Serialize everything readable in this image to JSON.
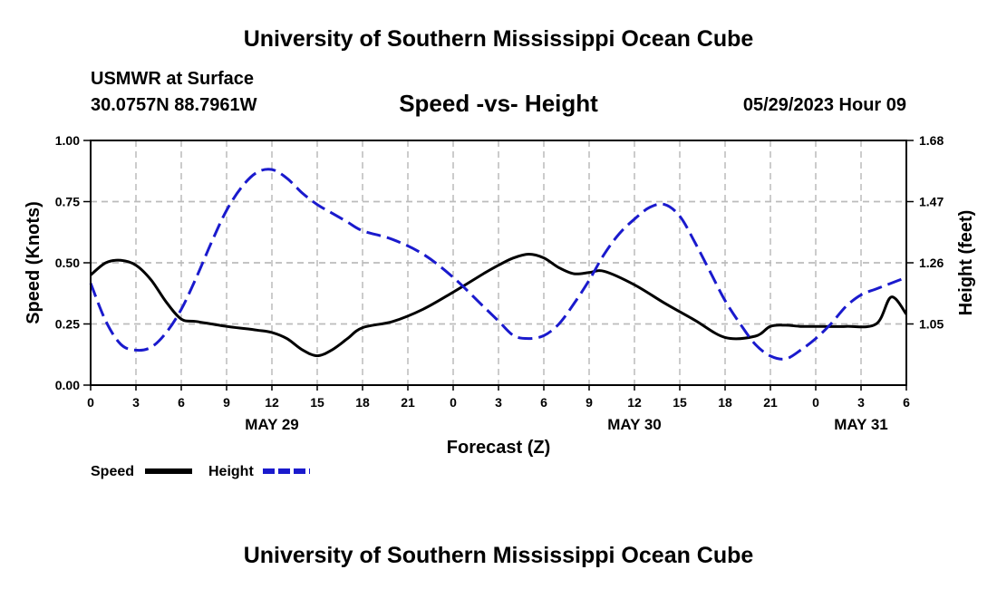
{
  "header": {
    "title": "University of Southern Mississippi Ocean Cube",
    "station": "USMWR at Surface",
    "coordinates": "30.0757N  88.7961W",
    "subtitle": "Speed -vs- Height",
    "timestamp": "05/29/2023 Hour 09"
  },
  "footer": {
    "title": "University of Southern Mississippi Ocean Cube"
  },
  "chart_data": {
    "type": "line",
    "title": "Speed -vs- Height",
    "xlabel": "Forecast (Z)",
    "ylabel_left": "Speed (Knots)",
    "ylabel_right": "Height (feet)",
    "x_range_hours": [
      0,
      54
    ],
    "x_tick_hours": [
      0,
      3,
      6,
      9,
      12,
      15,
      18,
      21,
      24,
      27,
      30,
      33,
      36,
      39,
      42,
      45,
      48,
      51,
      54
    ],
    "x_tick_labels": [
      "0",
      "3",
      "6",
      "9",
      "12",
      "15",
      "18",
      "21",
      "0",
      "3",
      "6",
      "9",
      "12",
      "15",
      "18",
      "21",
      "0",
      "3",
      "6"
    ],
    "day_labels": [
      {
        "label": "MAY 29",
        "hour": 12
      },
      {
        "label": "MAY 30",
        "hour": 36
      },
      {
        "label": "MAY 31",
        "hour": 51
      }
    ],
    "y_left": {
      "range": [
        0,
        1
      ],
      "ticks": [
        0,
        0.25,
        0.5,
        0.75,
        1
      ],
      "tick_labels": [
        "0.00",
        "0.25",
        "0.50",
        "0.75",
        "1.00"
      ]
    },
    "y_right": {
      "range": [
        0.84,
        1.68
      ],
      "ticks": [
        1.05,
        1.26,
        1.47,
        1.68
      ],
      "tick_labels": [
        "1.05",
        "1.26",
        "1.47",
        "1.68"
      ]
    },
    "grid": true,
    "legend": {
      "position": "bottom-left",
      "entries": [
        "Speed",
        "Height"
      ]
    },
    "series": [
      {
        "name": "Speed",
        "axis": "left",
        "color": "#000000",
        "style": "solid",
        "x": [
          0,
          1,
          2,
          3,
          4,
          5,
          6,
          7,
          9,
          11,
          12,
          13,
          14,
          15,
          16,
          17,
          18,
          20,
          22,
          24,
          26,
          27,
          28,
          29,
          30,
          31,
          32,
          33,
          34,
          36,
          38,
          40,
          42,
          44,
          45,
          46,
          47,
          48,
          50,
          52,
          53,
          54
        ],
        "values": [
          0.45,
          0.5,
          0.51,
          0.49,
          0.43,
          0.34,
          0.27,
          0.26,
          0.24,
          0.225,
          0.215,
          0.19,
          0.145,
          0.12,
          0.145,
          0.19,
          0.235,
          0.26,
          0.31,
          0.38,
          0.455,
          0.49,
          0.52,
          0.535,
          0.52,
          0.48,
          0.455,
          0.46,
          0.465,
          0.41,
          0.335,
          0.265,
          0.195,
          0.2,
          0.24,
          0.245,
          0.24,
          0.24,
          0.24,
          0.25,
          0.36,
          0.29
        ]
      },
      {
        "name": "Height",
        "axis": "right",
        "color": "#1a1acd",
        "style": "dashed",
        "x": [
          0,
          1,
          2,
          3,
          4,
          5,
          6,
          7,
          8,
          9,
          10,
          11,
          12,
          13,
          14,
          15,
          16,
          17,
          18,
          20,
          22,
          24,
          26,
          27,
          28,
          29,
          30,
          31,
          32,
          33,
          34,
          35,
          36,
          37,
          38,
          39,
          40,
          41,
          42,
          43,
          44,
          45,
          46,
          47,
          48,
          49,
          50,
          51,
          52,
          53,
          54
        ],
        "values": [
          1.19,
          1.06,
          0.98,
          0.96,
          0.97,
          1.02,
          1.1,
          1.21,
          1.33,
          1.44,
          1.52,
          1.57,
          1.58,
          1.55,
          1.5,
          1.46,
          1.43,
          1.4,
          1.37,
          1.34,
          1.29,
          1.21,
          1.11,
          1.06,
          1.01,
          1.0,
          1.01,
          1.05,
          1.12,
          1.2,
          1.29,
          1.36,
          1.41,
          1.45,
          1.46,
          1.42,
          1.33,
          1.23,
          1.13,
          1.05,
          0.98,
          0.94,
          0.93,
          0.96,
          1.0,
          1.05,
          1.11,
          1.15,
          1.17,
          1.19,
          1.21
        ]
      }
    ]
  }
}
